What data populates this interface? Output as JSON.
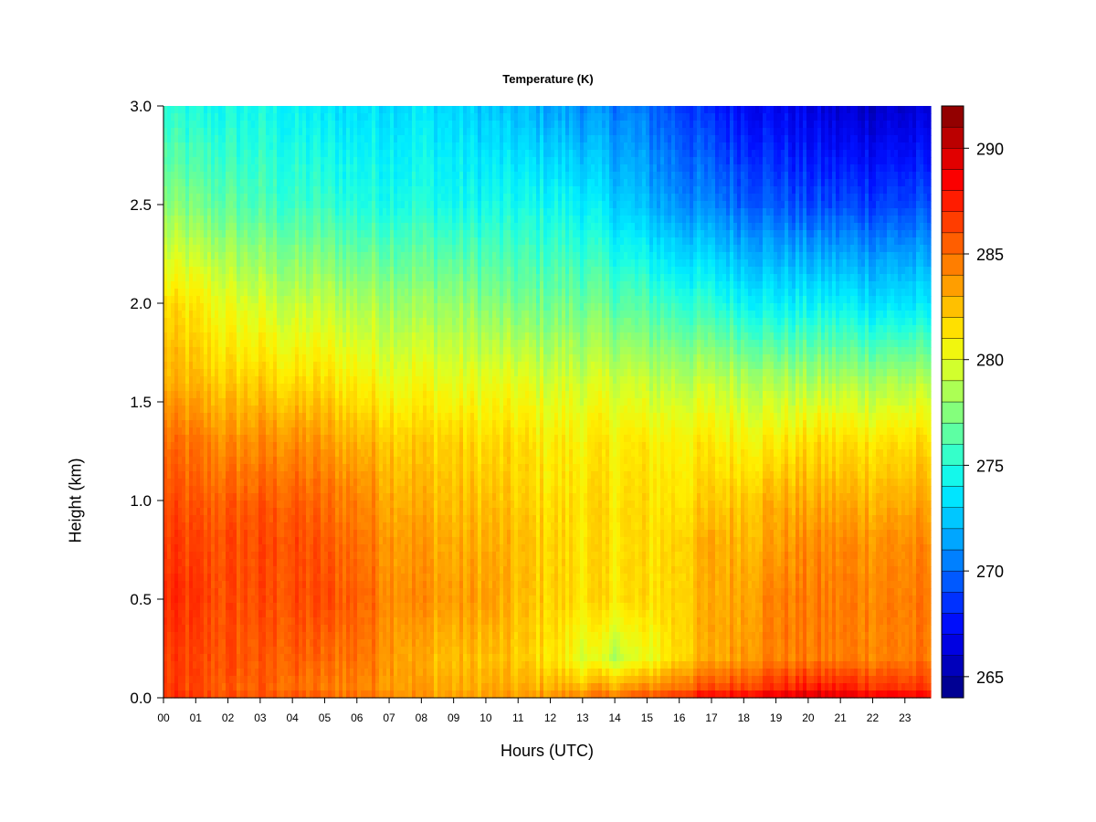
{
  "chart_data": {
    "type": "heatmap",
    "title": "Temperature (K)",
    "xlabel": "Hours (UTC)",
    "ylabel": "Height (km)",
    "x_ticks": [
      "00",
      "01",
      "02",
      "03",
      "04",
      "05",
      "06",
      "07",
      "08",
      "09",
      "10",
      "11",
      "12",
      "13",
      "14",
      "15",
      "16",
      "17",
      "18",
      "19",
      "20",
      "21",
      "22",
      "23"
    ],
    "xlim": [
      0,
      23.8
    ],
    "y_ticks": [
      "0.0",
      "0.5",
      "1.0",
      "1.5",
      "2.0",
      "2.5",
      "3.0"
    ],
    "ylim": [
      0,
      3.0
    ],
    "colorbar": {
      "ticks": [
        "265",
        "270",
        "275",
        "280",
        "285",
        "290"
      ],
      "range": [
        264,
        292
      ],
      "levels": 28,
      "colors": [
        "#00007f",
        "#0000b0",
        "#0000e0",
        "#0010ff",
        "#0040ff",
        "#0070ff",
        "#00a0ff",
        "#00c8ff",
        "#00ecff",
        "#20ffdf",
        "#50ffb0",
        "#80ff80",
        "#b0ff50",
        "#dfff20",
        "#ffef00",
        "#ffc800",
        "#ff9f00",
        "#ff7800",
        "#ff5000",
        "#ff2800",
        "#ff0000",
        "#df0000",
        "#b00000",
        "#7f0000"
      ]
    },
    "temperature_grid": {
      "hours": [
        0,
        1,
        2,
        3,
        4,
        5,
        6,
        7,
        8,
        9,
        10,
        11,
        12,
        13,
        14,
        15,
        16,
        17,
        18,
        19,
        20,
        21,
        22,
        23.8
      ],
      "heights_km": [
        0.0,
        0.05,
        0.2,
        0.5,
        0.8,
        1.0,
        1.3,
        1.6,
        2.0,
        2.5,
        3.0
      ],
      "values_K": [
        [
          287.0,
          286.5,
          286.0,
          286.0,
          286.0,
          285.5,
          285.0,
          284.5,
          284.0,
          283.5,
          283.5,
          283.5,
          284.0,
          284.5,
          285.0,
          286.0,
          287.5,
          288.5,
          289.0,
          289.5,
          290.0,
          289.5,
          289.0,
          288.5
        ],
        [
          286.5,
          286.0,
          285.5,
          285.5,
          285.0,
          284.5,
          284.5,
          284.0,
          283.5,
          283.0,
          283.0,
          283.0,
          283.0,
          283.0,
          283.5,
          284.0,
          285.0,
          286.0,
          286.5,
          287.0,
          287.5,
          287.5,
          287.0,
          286.5
        ],
        [
          286.5,
          286.0,
          286.0,
          285.5,
          285.5,
          285.0,
          285.0,
          284.0,
          283.0,
          282.5,
          282.5,
          282.0,
          281.5,
          280.0,
          279.0,
          280.0,
          282.0,
          283.0,
          284.0,
          284.5,
          284.5,
          284.5,
          284.5,
          284.5
        ],
        [
          287.0,
          286.5,
          286.0,
          286.0,
          286.0,
          286.0,
          285.5,
          284.5,
          284.0,
          283.5,
          283.5,
          282.5,
          282.0,
          281.5,
          281.5,
          281.5,
          282.0,
          283.0,
          283.5,
          284.5,
          284.5,
          284.5,
          284.5,
          284.5
        ],
        [
          286.5,
          286.0,
          286.0,
          286.0,
          286.0,
          285.5,
          285.0,
          284.0,
          283.5,
          283.0,
          283.0,
          282.5,
          282.0,
          281.5,
          281.5,
          281.5,
          282.0,
          283.0,
          283.0,
          283.5,
          284.0,
          284.0,
          284.0,
          284.0
        ],
        [
          286.0,
          285.5,
          285.5,
          285.5,
          285.5,
          285.0,
          284.5,
          283.5,
          283.0,
          282.5,
          282.5,
          282.0,
          281.5,
          281.5,
          281.5,
          281.5,
          281.5,
          282.0,
          282.5,
          283.0,
          283.0,
          283.0,
          283.0,
          283.0
        ],
        [
          285.0,
          284.5,
          284.0,
          284.0,
          284.0,
          283.5,
          283.0,
          282.5,
          282.0,
          282.0,
          281.5,
          281.5,
          281.0,
          281.0,
          281.0,
          281.0,
          281.0,
          281.0,
          281.0,
          281.0,
          281.5,
          281.5,
          281.5,
          281.5
        ],
        [
          283.0,
          282.5,
          282.0,
          282.0,
          281.5,
          281.5,
          281.0,
          280.5,
          280.5,
          280.0,
          280.0,
          280.0,
          279.5,
          279.5,
          279.5,
          279.0,
          279.0,
          279.0,
          279.0,
          278.5,
          278.5,
          278.5,
          278.5,
          278.5
        ],
        [
          281.5,
          281.0,
          280.0,
          279.5,
          279.0,
          279.0,
          278.5,
          278.5,
          278.0,
          278.0,
          277.5,
          277.0,
          277.0,
          277.0,
          276.5,
          276.0,
          275.5,
          275.0,
          274.5,
          274.0,
          274.0,
          274.0,
          273.5,
          273.5
        ],
        [
          277.5,
          277.0,
          276.5,
          276.0,
          275.5,
          275.5,
          275.0,
          275.0,
          275.0,
          274.5,
          274.5,
          274.5,
          274.5,
          274.0,
          273.0,
          272.0,
          271.0,
          270.5,
          270.0,
          269.5,
          269.0,
          269.0,
          269.0,
          269.0
        ],
        [
          275.0,
          274.5,
          274.5,
          274.5,
          274.0,
          273.5,
          273.5,
          273.5,
          273.5,
          273.0,
          272.5,
          272.0,
          271.5,
          271.0,
          270.5,
          270.0,
          269.0,
          268.0,
          267.5,
          267.0,
          266.5,
          266.0,
          266.0,
          266.0
        ]
      ]
    }
  }
}
